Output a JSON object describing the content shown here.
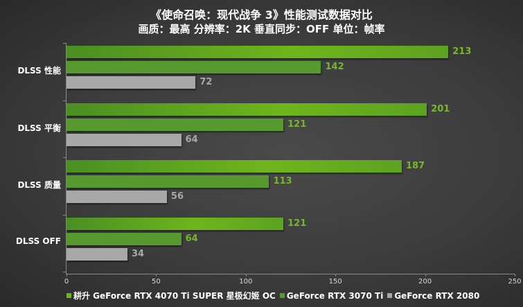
{
  "header": {
    "title": "《使命召唤：现代战争 3》性能测试数据对比",
    "subtitle": "画质：最高 分辨率：2K 垂直同步：OFF 单位：帧率"
  },
  "chart_data": {
    "type": "bar",
    "orientation": "horizontal",
    "title": "《使命召唤：现代战争 3》性能测试数据对比",
    "subtitle": "画质：最高 分辨率：2K 垂直同步：OFF 单位：帧率",
    "categories": [
      "DLSS 性能",
      "DLSS 平衡",
      "DLSS 质量",
      "DLSS OFF"
    ],
    "series": [
      {
        "name": "耕升 GeForce RTX 4070 Ti SUPER 星极幻姬 OC",
        "color": "#6fb51c",
        "values": [
          213,
          201,
          187,
          121
        ]
      },
      {
        "name": "GeForce RTX 3070 Ti",
        "color": "#569a2f",
        "values": [
          142,
          121,
          113,
          64
        ]
      },
      {
        "name": "GeForce RTX 2080",
        "color": "#a8a8a8",
        "values": [
          72,
          64,
          56,
          34
        ]
      }
    ],
    "xlabel": "",
    "ylabel": "",
    "xlim": [
      0,
      250
    ],
    "xticks": [
      "0",
      "50",
      "100",
      "150",
      "200",
      "250"
    ],
    "grid": false,
    "legend_position": "bottom"
  },
  "legend": {
    "items": [
      {
        "label": "耕升 GeForce RTX 4070 Ti SUPER 星极幻姬 OC",
        "color": "#6fb51c"
      },
      {
        "label": "GeForce RTX 3070 Ti",
        "color": "#569a2f"
      },
      {
        "label": "GeForce RTX 2080",
        "color": "#a8a8a8"
      }
    ]
  }
}
